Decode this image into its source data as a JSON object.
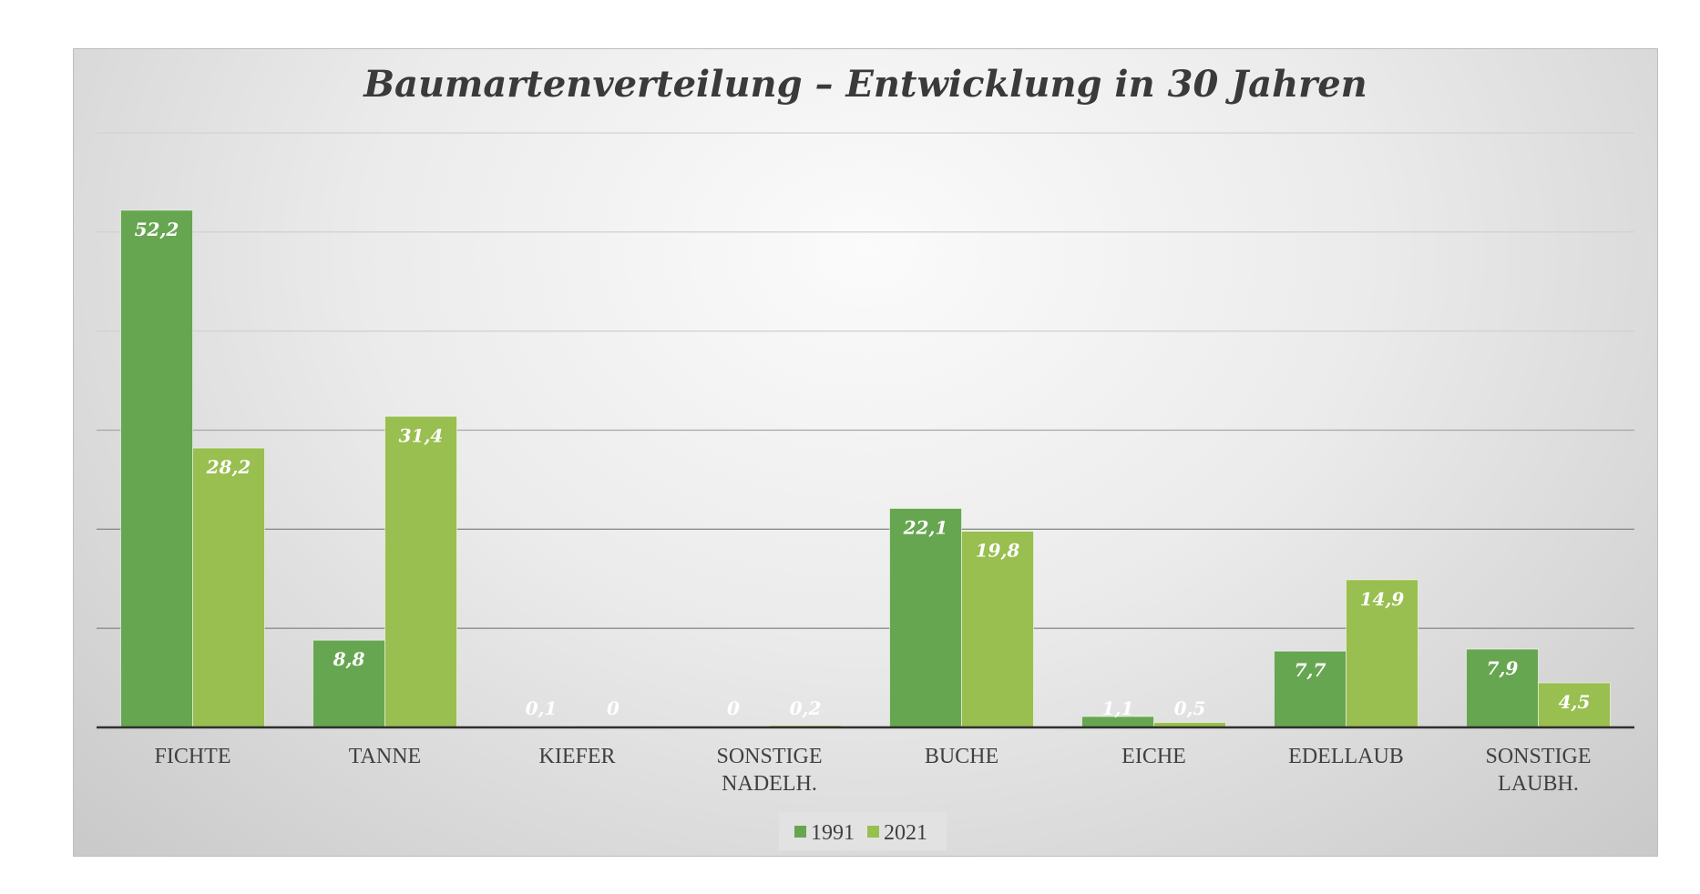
{
  "chart_data": {
    "type": "bar",
    "title": "Baumartenverteilung – Entwicklung in 30 Jahren",
    "categories": [
      [
        "FICHTE"
      ],
      [
        "TANNE"
      ],
      [
        "KIEFER"
      ],
      [
        "SONSTIGE",
        "NADELH."
      ],
      [
        "BUCHE"
      ],
      [
        "EICHE"
      ],
      [
        "EDELLAUB"
      ],
      [
        "SONSTIGE",
        "LAUBH."
      ]
    ],
    "series": [
      {
        "name": "1991",
        "values": [
          52.2,
          8.8,
          0.1,
          0,
          22.1,
          1.1,
          7.7,
          7.9
        ],
        "labels": [
          "52,2",
          "8,8",
          "0,1",
          "0",
          "22,1",
          "1,1",
          "7,7",
          "7,9"
        ],
        "color": "#67a650"
      },
      {
        "name": "2021",
        "values": [
          28.2,
          31.4,
          0,
          0.2,
          19.8,
          0.5,
          14.9,
          4.5
        ],
        "labels": [
          "28,2",
          "31,4",
          "0",
          "0,2",
          "19,8",
          "0,5",
          "14,9",
          "4,5"
        ],
        "color": "#98bf4f"
      }
    ],
    "ylim": [
      0,
      60
    ],
    "gridlines": true,
    "axis_tick_labels_shown": false,
    "legend_position": "bottom"
  }
}
